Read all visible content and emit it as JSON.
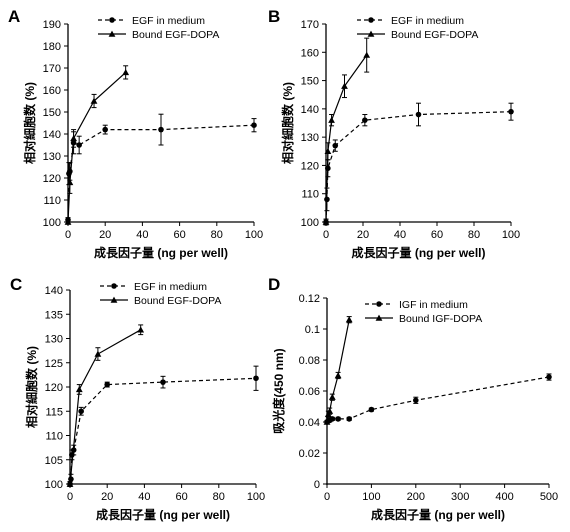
{
  "figure": {
    "panels": [
      {
        "letter": "A",
        "ylabel": "相对細胞数 (%)",
        "xlabel": "成長因子量 (ng per well)"
      },
      {
        "letter": "B",
        "ylabel": "相对細胞数 (%)",
        "xlabel": "成長因子量 (ng per well)"
      },
      {
        "letter": "C",
        "ylabel": "相对細胞数 (%)",
        "xlabel": "成長因子量 (ng per well)"
      },
      {
        "letter": "D",
        "ylabel": "吸光度(450 nm)",
        "xlabel": "成長因子量 (ng per well)"
      }
    ]
  },
  "chart_data": [
    {
      "panel": "A",
      "type": "line",
      "xlabel": "成長因子量 (ng per well)",
      "ylabel": "相对細胞数 (%)",
      "xlim": [
        0,
        100
      ],
      "ylim": [
        100,
        190
      ],
      "xticks": [
        0,
        20,
        40,
        60,
        80,
        100
      ],
      "yticks": [
        100,
        110,
        120,
        130,
        140,
        150,
        160,
        170,
        180,
        190
      ],
      "grid": false,
      "legend_position": "top-center",
      "series": [
        {
          "name": "EGF in medium",
          "line": "dashed",
          "marker": "circle",
          "x": [
            0,
            0.5,
            1,
            3,
            6,
            20,
            50,
            100
          ],
          "y": [
            101,
            122,
            123,
            136,
            135,
            142,
            142,
            144
          ],
          "err": [
            1,
            5,
            4,
            5,
            4,
            2,
            7,
            3
          ]
        },
        {
          "name": "Bound EGF-DOPA",
          "line": "solid",
          "marker": "triangle",
          "x": [
            0,
            1,
            3,
            14,
            31
          ],
          "y": [
            100,
            118,
            138,
            155,
            168
          ],
          "err": [
            1,
            5,
            4,
            3,
            3
          ]
        }
      ]
    },
    {
      "panel": "B",
      "type": "line",
      "xlabel": "成長因子量 (ng per well)",
      "ylabel": "相对細胞数 (%)",
      "xlim": [
        0,
        100
      ],
      "ylim": [
        100,
        170
      ],
      "xticks": [
        0,
        20,
        40,
        60,
        80,
        100
      ],
      "yticks": [
        100,
        110,
        120,
        130,
        140,
        150,
        160,
        170
      ],
      "grid": false,
      "legend_position": "top-center",
      "series": [
        {
          "name": "EGF in medium",
          "line": "dashed",
          "marker": "circle",
          "x": [
            0,
            0.5,
            1,
            5,
            21,
            50,
            100
          ],
          "y": [
            100,
            108,
            119,
            127,
            136,
            138,
            139
          ],
          "err": [
            1,
            4,
            3,
            2,
            2,
            4,
            3
          ]
        },
        {
          "name": "Bound EGF-DOPA",
          "line": "solid",
          "marker": "triangle",
          "x": [
            0,
            1,
            3,
            10,
            22
          ],
          "y": [
            100,
            125,
            136,
            148,
            159
          ],
          "err": [
            1,
            3,
            2,
            4,
            6
          ]
        }
      ]
    },
    {
      "panel": "C",
      "type": "line",
      "xlabel": "成長因子量 (ng per well)",
      "ylabel": "相对細胞数 (%)",
      "xlim": [
        0,
        100
      ],
      "ylim": [
        100,
        140
      ],
      "xticks": [
        0,
        20,
        40,
        60,
        80,
        100
      ],
      "yticks": [
        100,
        105,
        110,
        115,
        120,
        125,
        130,
        135,
        140
      ],
      "grid": false,
      "legend_position": "top-center",
      "series": [
        {
          "name": "EGF in medium",
          "line": "dashed",
          "marker": "circle",
          "x": [
            0,
            0.5,
            1,
            2,
            6,
            20,
            50,
            100
          ],
          "y": [
            100,
            101,
            106,
            107,
            115,
            120.5,
            121,
            121.8
          ],
          "err": [
            0.5,
            1,
            1,
            1,
            0.8,
            0.5,
            1.2,
            2.5
          ]
        },
        {
          "name": "Bound EGF-DOPA",
          "line": "solid",
          "marker": "triangle",
          "x": [
            0,
            5,
            15,
            38
          ],
          "y": [
            100,
            119.5,
            126.8,
            131.8
          ],
          "err": [
            0.5,
            1,
            1.3,
            1
          ]
        }
      ]
    },
    {
      "panel": "D",
      "type": "line",
      "xlabel": "成長因子量 (ng per well)",
      "ylabel": "吸光度(450 nm)",
      "xlim": [
        0,
        500
      ],
      "ylim": [
        0,
        0.12
      ],
      "xticks": [
        0,
        100,
        200,
        300,
        400,
        500
      ],
      "yticks": [
        0,
        0.02,
        0.04,
        0.06,
        0.08,
        0.1,
        0.12
      ],
      "grid": false,
      "legend_position": "top-center",
      "series": [
        {
          "name": "IGF in medium",
          "line": "dashed",
          "marker": "circle",
          "x": [
            0,
            3,
            6,
            12,
            25,
            50,
            100,
            200,
            500
          ],
          "y": [
            0.04,
            0.041,
            0.041,
            0.042,
            0.042,
            0.042,
            0.048,
            0.054,
            0.069
          ],
          "err": [
            0.001,
            0.001,
            0.001,
            0.001,
            0.001,
            0.001,
            0.001,
            0.002,
            0.002
          ]
        },
        {
          "name": "Bound IGF-DOPA",
          "line": "solid",
          "marker": "triangle",
          "x": [
            0,
            3,
            6,
            12,
            25,
            50
          ],
          "y": [
            0.04,
            0.045,
            0.047,
            0.056,
            0.07,
            0.106
          ],
          "err": [
            0.001,
            0.002,
            0.002,
            0.002,
            0.002,
            0.002
          ]
        }
      ]
    }
  ]
}
